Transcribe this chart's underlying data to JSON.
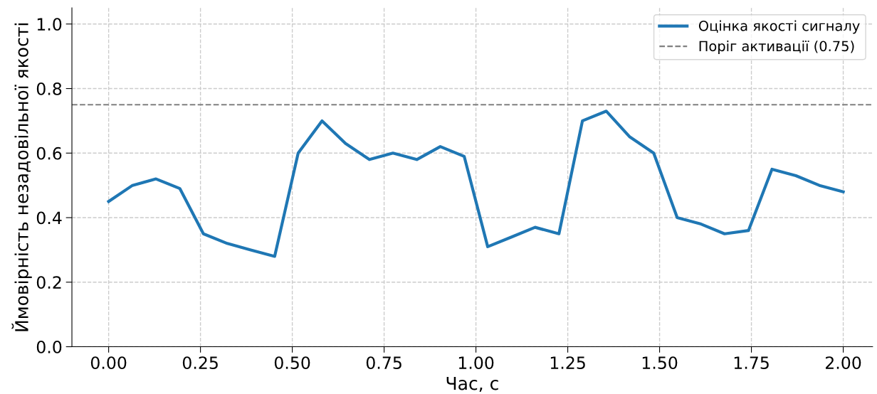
{
  "chart_data": {
    "type": "line",
    "xlabel": "Час, с",
    "ylabel": "Ймовірність незадовільної якості",
    "x": [
      0.0,
      0.065,
      0.129,
      0.194,
      0.258,
      0.323,
      0.387,
      0.452,
      0.516,
      0.581,
      0.645,
      0.71,
      0.774,
      0.839,
      0.903,
      0.968,
      1.032,
      1.097,
      1.161,
      1.226,
      1.29,
      1.355,
      1.419,
      1.484,
      1.548,
      1.613,
      1.677,
      1.742,
      1.806,
      1.871,
      1.935,
      2.0
    ],
    "series": [
      {
        "name": "Оцінка якості сигналу",
        "color": "#1f77b4",
        "values": [
          0.45,
          0.5,
          0.52,
          0.49,
          0.35,
          0.32,
          0.3,
          0.28,
          0.6,
          0.7,
          0.63,
          0.58,
          0.6,
          0.58,
          0.62,
          0.59,
          0.31,
          0.34,
          0.37,
          0.35,
          0.7,
          0.73,
          0.65,
          0.6,
          0.4,
          0.38,
          0.35,
          0.36,
          0.55,
          0.53,
          0.5,
          0.48
        ]
      }
    ],
    "ref_lines": [
      {
        "axis": "y",
        "value": 0.75,
        "label": "Поріг активації (0.75)",
        "color": "#808080",
        "line_style": "dashed"
      }
    ],
    "xlim": [
      -0.1,
      2.08
    ],
    "ylim": [
      0,
      1.05
    ],
    "xticks": [
      {
        "value": 0,
        "label": "0.00"
      },
      {
        "value": 0.25,
        "label": "0.25"
      },
      {
        "value": 0.5,
        "label": "0.50"
      },
      {
        "value": 0.75,
        "label": "0.75"
      },
      {
        "value": 1,
        "label": "1.00"
      },
      {
        "value": 1.25,
        "label": "1.25"
      },
      {
        "value": 1.5,
        "label": "1.50"
      },
      {
        "value": 1.75,
        "label": "1.75"
      },
      {
        "value": 2,
        "label": "2.00"
      }
    ],
    "yticks": [
      {
        "value": 0,
        "label": "0.0"
      },
      {
        "value": 0.2,
        "label": "0.2"
      },
      {
        "value": 0.4,
        "label": "0.4"
      },
      {
        "value": 0.6,
        "label": "0.6"
      },
      {
        "value": 0.8,
        "label": "0.8"
      },
      {
        "value": 1.0,
        "label": "1.0"
      }
    ],
    "grid": true,
    "legend": "top right",
    "line_style": "solid",
    "marker": "none"
  }
}
